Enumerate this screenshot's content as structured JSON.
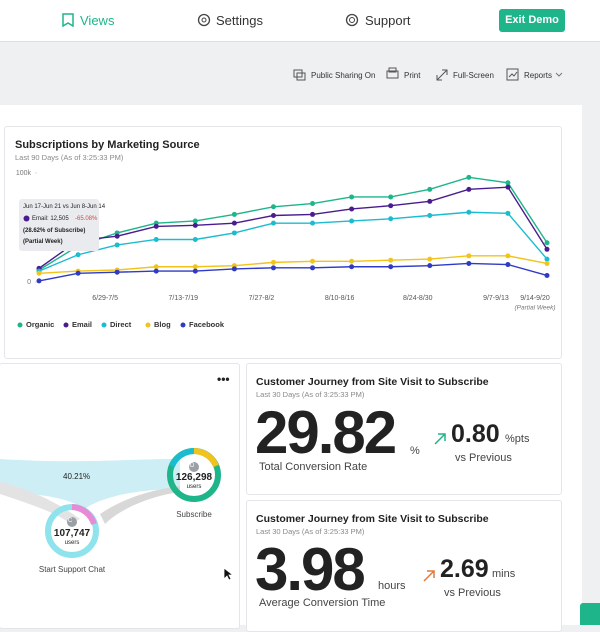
{
  "nav": {
    "items": [
      "Views",
      "Settings",
      "Support"
    ],
    "button": "Exit Demo"
  },
  "toolbar": [
    "Public Sharing On",
    "Print",
    "Full-Screen",
    "Reports"
  ],
  "chart_data": {
    "type": "line",
    "title": "Subscriptions by Marketing Source",
    "subtitle": "Last 90 Days (As of 3:25:33 PM)",
    "categories": [
      null,
      null,
      "6/29-7/5",
      null,
      "7/13-7/19",
      null,
      "7/27-8/2",
      null,
      "8/10-8/16",
      null,
      "8/24-8/30",
      null,
      "9/7-9/13",
      "9/14-9/20"
    ],
    "annotation": "(Partial Week)",
    "ylim": [
      0,
      100000
    ],
    "yticks": [
      0,
      {
        "value": 100000,
        "label": "100k"
      }
    ],
    "series": [
      {
        "name": "Organic",
        "color": "#1fb58a",
        "values": [
          11000,
          33000,
          45000,
          54000,
          56000,
          62000,
          69000,
          72000,
          78000,
          78000,
          85000,
          96000,
          91000,
          36000
        ]
      },
      {
        "name": "Email",
        "color": "#4a1d8f",
        "values": [
          12505,
          38000,
          42000,
          51000,
          52000,
          54000,
          61000,
          62000,
          67000,
          70000,
          74000,
          85000,
          87000,
          30000
        ]
      },
      {
        "name": "Direct",
        "color": "#1cbcd0",
        "values": [
          10000,
          25000,
          34000,
          39000,
          39000,
          45000,
          54000,
          54000,
          56000,
          58000,
          61000,
          64000,
          63000,
          21000
        ]
      },
      {
        "name": "Blog",
        "color": "#f2c31b",
        "values": [
          8000,
          10000,
          11000,
          14000,
          14000,
          15000,
          18000,
          19000,
          19000,
          20000,
          21000,
          24000,
          24000,
          17000
        ]
      },
      {
        "name": "Facebook",
        "color": "#2f3bc4",
        "values": [
          1000,
          8000,
          9000,
          10000,
          10000,
          12000,
          13000,
          13000,
          14000,
          14000,
          15000,
          17000,
          16000,
          6000
        ]
      }
    ],
    "legend": "bottom-left"
  },
  "tooltip": {
    "title": "Jun 17-Jun 21 vs Jun 8-Jun 14",
    "label": "Email: 12,505",
    "change": "-65.08%",
    "share": "(28.62% of Subscribe)",
    "note": "(Partial Week)"
  },
  "funnel": {
    "menu": "•••",
    "rate": "40.21%",
    "end": {
      "icon": "D",
      "value": "126,298",
      "unit": "users",
      "label": "Subscribe"
    },
    "start": {
      "icon": "C",
      "value": "107,747",
      "unit": "users",
      "label": "Start Support Chat"
    }
  },
  "kpis": [
    {
      "title": "Customer Journey from Site Visit to Subscribe",
      "subtitle": "Last 30 Days (As of 3:25:33 PM)",
      "value": "29.82",
      "unit": "%",
      "caption": "Total Conversion Rate",
      "delta": "0.80",
      "delta_unit": "%pts",
      "delta_caption": "vs Previous"
    },
    {
      "title": "Customer Journey from Site Visit to Subscribe",
      "subtitle": "Last 30 Days (As of 3:25:33 PM)",
      "value": "3.98",
      "unit": "hours",
      "caption": "Average Conversion Time",
      "delta": "2.69",
      "delta_unit": "mins",
      "delta_caption": "vs Previous"
    }
  ]
}
